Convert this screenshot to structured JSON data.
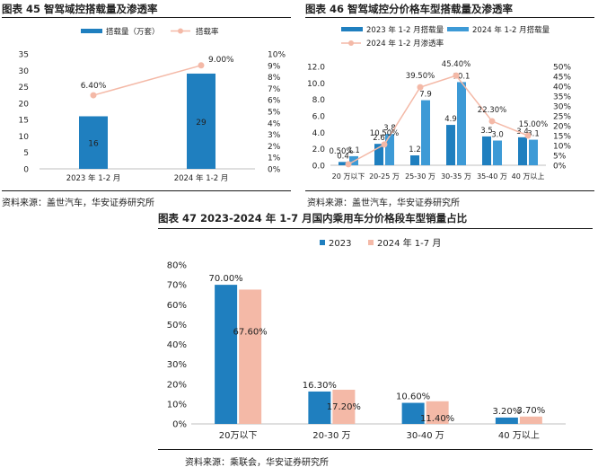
{
  "figures": [
    {
      "title": "图表 45 智驾域控搭载量及渗透率",
      "source": "资料来源：盖世汽车，华安证券研究所"
    },
    {
      "title": "图表 46 智驾域控分价格车型搭载量及渗透率",
      "source": "资料来源：盖世汽车，华安证券研究所"
    },
    {
      "title": "图表 47 2023-2024 年 1-7 月国内乘用车分价格段车型销量占比",
      "source": "资料来源：乘联会，华安证券研究所"
    }
  ],
  "colors": {
    "blue_dark": "#1f7fbf",
    "blue_light": "#3d9ad6",
    "pink": "#f4b9a7",
    "line": "#f4b9a7",
    "axis": "#bfbfbf"
  },
  "chart_data": [
    {
      "type": "bar",
      "categories": [
        "2023 年 1-2 月",
        "2024 年 1-2 月"
      ],
      "series": [
        {
          "name": "搭载量（万套）",
          "values": [
            16,
            29
          ],
          "labels": [
            "16",
            "29"
          ],
          "axis": "left"
        },
        {
          "name": "搭载率",
          "type": "line",
          "values": [
            6.4,
            9.0
          ],
          "labels": [
            "6.40%",
            "9.00%"
          ],
          "axis": "right"
        }
      ],
      "yticks": [
        "0",
        "5",
        "10",
        "15",
        "20",
        "25",
        "30",
        "35"
      ],
      "ylim": [
        0,
        35
      ],
      "y2ticks": [
        "0%",
        "1%",
        "2%",
        "3%",
        "4%",
        "5%",
        "6%",
        "7%",
        "8%",
        "9%",
        "10%"
      ],
      "y2lim": [
        0,
        10
      ],
      "legend": "top"
    },
    {
      "type": "bar",
      "categories": [
        "20 万以下",
        "20-25 万",
        "25-30 万",
        "30-35 万",
        "35-40 万",
        "40 万以上"
      ],
      "series": [
        {
          "name": "2023 年 1-2 月搭载量",
          "values": [
            0.4,
            2.6,
            1.2,
            4.9,
            3.5,
            3.4
          ],
          "labels": [
            "0.4",
            "2.6",
            "1.2",
            "4.9",
            "3.5",
            "3.4"
          ],
          "axis": "left"
        },
        {
          "name": "2024 年 1-2 月搭载量",
          "values": [
            1.1,
            3.8,
            7.9,
            10.1,
            3.0,
            3.1
          ],
          "labels": [
            "1.1",
            "3.8",
            "7.9",
            "10.1",
            "3.0",
            "3.1"
          ],
          "axis": "left"
        },
        {
          "name": "2024 年 1-2 月渗透率",
          "type": "line",
          "values": [
            0.5,
            10.5,
            39.5,
            45.4,
            22.3,
            15.0
          ],
          "labels": [
            "0.50%",
            "10.50%",
            "39.50%",
            "45.40%",
            "22.30%",
            "15.00%"
          ],
          "axis": "right"
        }
      ],
      "yticks": [
        "0.0",
        "2.0",
        "4.0",
        "6.0",
        "8.0",
        "10.0",
        "12.0"
      ],
      "ylim": [
        0,
        12
      ],
      "y2ticks": [
        "0%",
        "5%",
        "10%",
        "15%",
        "20%",
        "25%",
        "30%",
        "35%",
        "40%",
        "45%",
        "50%"
      ],
      "y2lim": [
        0,
        50
      ],
      "legend": "top"
    },
    {
      "type": "bar",
      "categories": [
        "20万以下",
        "20-30 万",
        "30-40 万",
        "40 万以上"
      ],
      "series": [
        {
          "name": "2023",
          "values": [
            70.0,
            16.3,
            10.6,
            3.2
          ],
          "labels": [
            "70.00%",
            "16.30%",
            "10.60%",
            "3.20%"
          ]
        },
        {
          "name": "2024 年 1-7 月",
          "values": [
            67.6,
            17.2,
            11.4,
            3.7
          ],
          "labels": [
            "67.60%",
            "17.20%",
            "11.40%",
            "3.70%"
          ]
        }
      ],
      "yticks": [
        "0%",
        "10%",
        "20%",
        "30%",
        "40%",
        "50%",
        "60%",
        "70%",
        "80%"
      ],
      "ylim": [
        0,
        80
      ],
      "legend": "top"
    }
  ]
}
